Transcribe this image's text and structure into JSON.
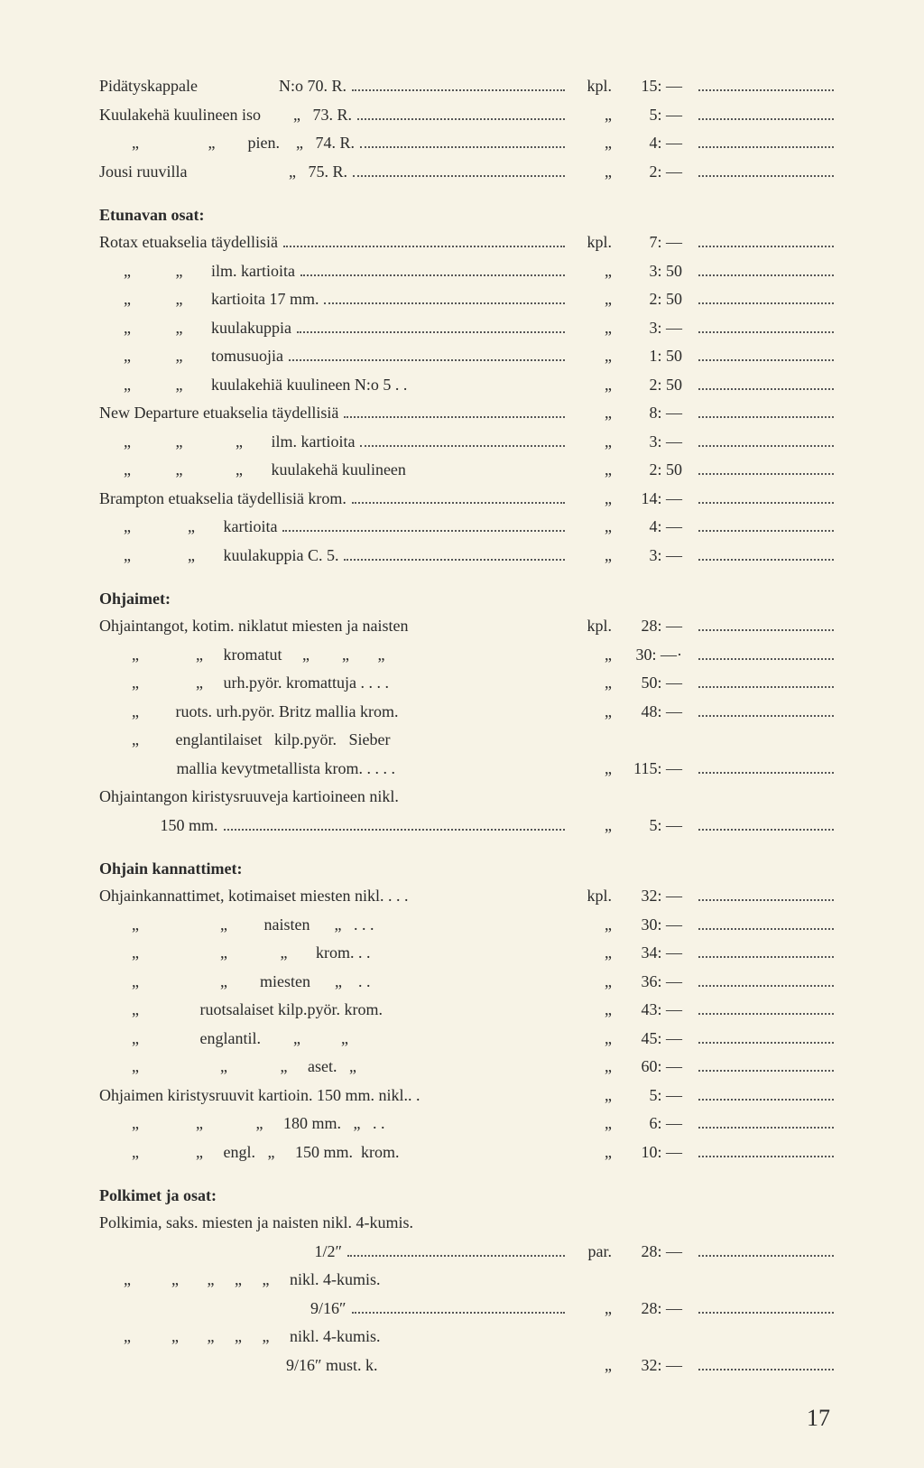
{
  "page_number": "17",
  "sections": [
    {
      "heading": null,
      "rows": [
        {
          "desc": "Pidätyskappale                    N:o 70. R.",
          "unit": "kpl.",
          "price": "15: —",
          "blank": true
        },
        {
          "desc": "Kuulakehä kuulineen iso        „   73. R.",
          "unit": "„",
          "price": "5: —",
          "blank": true
        },
        {
          "desc": "        „                 „        pien.    „   74. R.",
          "unit": "„",
          "price": "4: —",
          "blank": true
        },
        {
          "desc": "Jousi ruuvilla                         „   75. R.",
          "unit": "„",
          "price": "2: —",
          "blank": true
        }
      ]
    },
    {
      "heading": "Etunavan osat:",
      "rows": [
        {
          "desc": "Rotax etuakselia täydellisiä",
          "unit": "kpl.",
          "price": "7: —",
          "blank": true
        },
        {
          "desc": "      „           „       ilm. kartioita",
          "unit": "„",
          "price": "3: 50",
          "blank": true
        },
        {
          "desc": "      „           „       kartioita 17 mm.",
          "unit": "„",
          "price": "2: 50",
          "blank": true
        },
        {
          "desc": "      „           „       kuulakuppia",
          "unit": "„",
          "price": "3: —",
          "blank": true
        },
        {
          "desc": "      „           „       tomusuojia",
          "unit": "„",
          "price": "1: 50",
          "blank": true
        },
        {
          "desc": "      „           „       kuulakehiä kuulineen N:o 5 . .",
          "nodots": true,
          "unit": "„",
          "price": "2: 50",
          "blank": true
        },
        {
          "desc": "New Departure etuakselia täydellisiä",
          "unit": "„",
          "price": "8: —",
          "blank": true
        },
        {
          "desc": "      „           „             „       ilm. kartioita",
          "unit": "„",
          "price": "3: —",
          "blank": true
        },
        {
          "desc": "      „           „             „       kuulakehä kuulineen",
          "nodots": true,
          "unit": "„",
          "price": "2: 50",
          "blank": true
        },
        {
          "desc": "Brampton etuakselia täydellisiä krom.",
          "unit": "„",
          "price": "14: —",
          "blank": true
        },
        {
          "desc": "      „              „       kartioita",
          "unit": "„",
          "price": "4: —",
          "blank": true
        },
        {
          "desc": "      „              „       kuulakuppia C. 5.",
          "unit": "„",
          "price": "3: —",
          "blank": true
        }
      ]
    },
    {
      "heading": "Ohjaimet:",
      "rows": [
        {
          "desc": "Ohjaintangot, kotim. niklatut miesten ja naisten",
          "nodots": true,
          "unit": "kpl.",
          "price": "28: —",
          "blank": true
        },
        {
          "desc": "        „              „     kromatut     „        „       „",
          "nodots": true,
          "unit": "„",
          "price": "30: —·",
          "blank": true
        },
        {
          "desc": "        „              „     urh.pyör. kromattuja . . . .",
          "nodots": true,
          "unit": "„",
          "price": "50: —",
          "blank": true
        },
        {
          "desc": "        „         ruots. urh.pyör. Britz mallia krom.",
          "nodots": true,
          "unit": "„",
          "price": "48: —",
          "blank": true
        },
        {
          "desc": "        „         englantilaiset   kilp.pyör.   Sieber",
          "nodots": true,
          "unit": "",
          "price": "",
          "blank": false
        },
        {
          "desc": "                   mallia kevytmetallista krom. . . . .",
          "nodots": true,
          "unit": "„",
          "price": "115: —",
          "blank": true
        },
        {
          "desc": "Ohjaintangon kiristysruuveja kartioineen nikl.",
          "nodots": true,
          "unit": "",
          "price": "",
          "blank": false
        },
        {
          "desc": "               150 mm.",
          "unit": "„",
          "price": "5: —",
          "blank": true
        }
      ]
    },
    {
      "heading": "Ohjain kannattimet:",
      "rows": [
        {
          "desc": "Ohjainkannattimet, kotimaiset miesten nikl. . . .",
          "nodots": true,
          "unit": "kpl.",
          "price": "32: —",
          "blank": true
        },
        {
          "desc": "        „                    „         naisten      „   . . .",
          "nodots": true,
          "unit": "„",
          "price": "30: —",
          "blank": true
        },
        {
          "desc": "        „                    „             „       krom. . .",
          "nodots": true,
          "unit": "„",
          "price": "34: —",
          "blank": true
        },
        {
          "desc": "        „                    „        miesten      „    . .",
          "nodots": true,
          "unit": "„",
          "price": "36: —",
          "blank": true
        },
        {
          "desc": "        „               ruotsalaiset kilp.pyör. krom.",
          "nodots": true,
          "unit": "„",
          "price": "43: —",
          "blank": true
        },
        {
          "desc": "        „               englantil.        „          „",
          "nodots": true,
          "unit": "„",
          "price": "45: —",
          "blank": true
        },
        {
          "desc": "        „                    „             „     aset.   „",
          "nodots": true,
          "unit": "„",
          "price": "60: —",
          "blank": true
        },
        {
          "desc": "Ohjaimen kiristysruuvit kartioin. 150 mm. nikl.. .",
          "nodots": true,
          "unit": "„",
          "price": "5: —",
          "blank": true
        },
        {
          "desc": "        „              „             „     180 mm.   „   . .",
          "nodots": true,
          "unit": "„",
          "price": "6: —",
          "blank": true
        },
        {
          "desc": "        „              „     engl.   „     150 mm.  krom.",
          "nodots": true,
          "unit": "„",
          "price": "10: —",
          "blank": true
        }
      ]
    },
    {
      "heading": "Polkimet ja osat:",
      "rows": [
        {
          "desc": "Polkimia, saks. miesten ja naisten nikl. 4-kumis.",
          "nodots": true,
          "unit": "",
          "price": "",
          "blank": false
        },
        {
          "desc": "                                                     1/2″",
          "unit": "par.",
          "price": "28: —",
          "blank": true
        },
        {
          "desc": "      „          „       „     „     „     nikl. 4-kumis.",
          "nodots": true,
          "unit": "",
          "price": "",
          "blank": false
        },
        {
          "desc": "                                                    9/16″",
          "unit": "„",
          "price": "28: —",
          "blank": true
        },
        {
          "desc": "      „          „       „     „     „     nikl. 4-kumis.",
          "nodots": true,
          "unit": "",
          "price": "",
          "blank": false
        },
        {
          "desc": "                                              9/16″ must. k.",
          "nodots": true,
          "unit": "„",
          "price": "32: —",
          "blank": true
        }
      ]
    }
  ]
}
